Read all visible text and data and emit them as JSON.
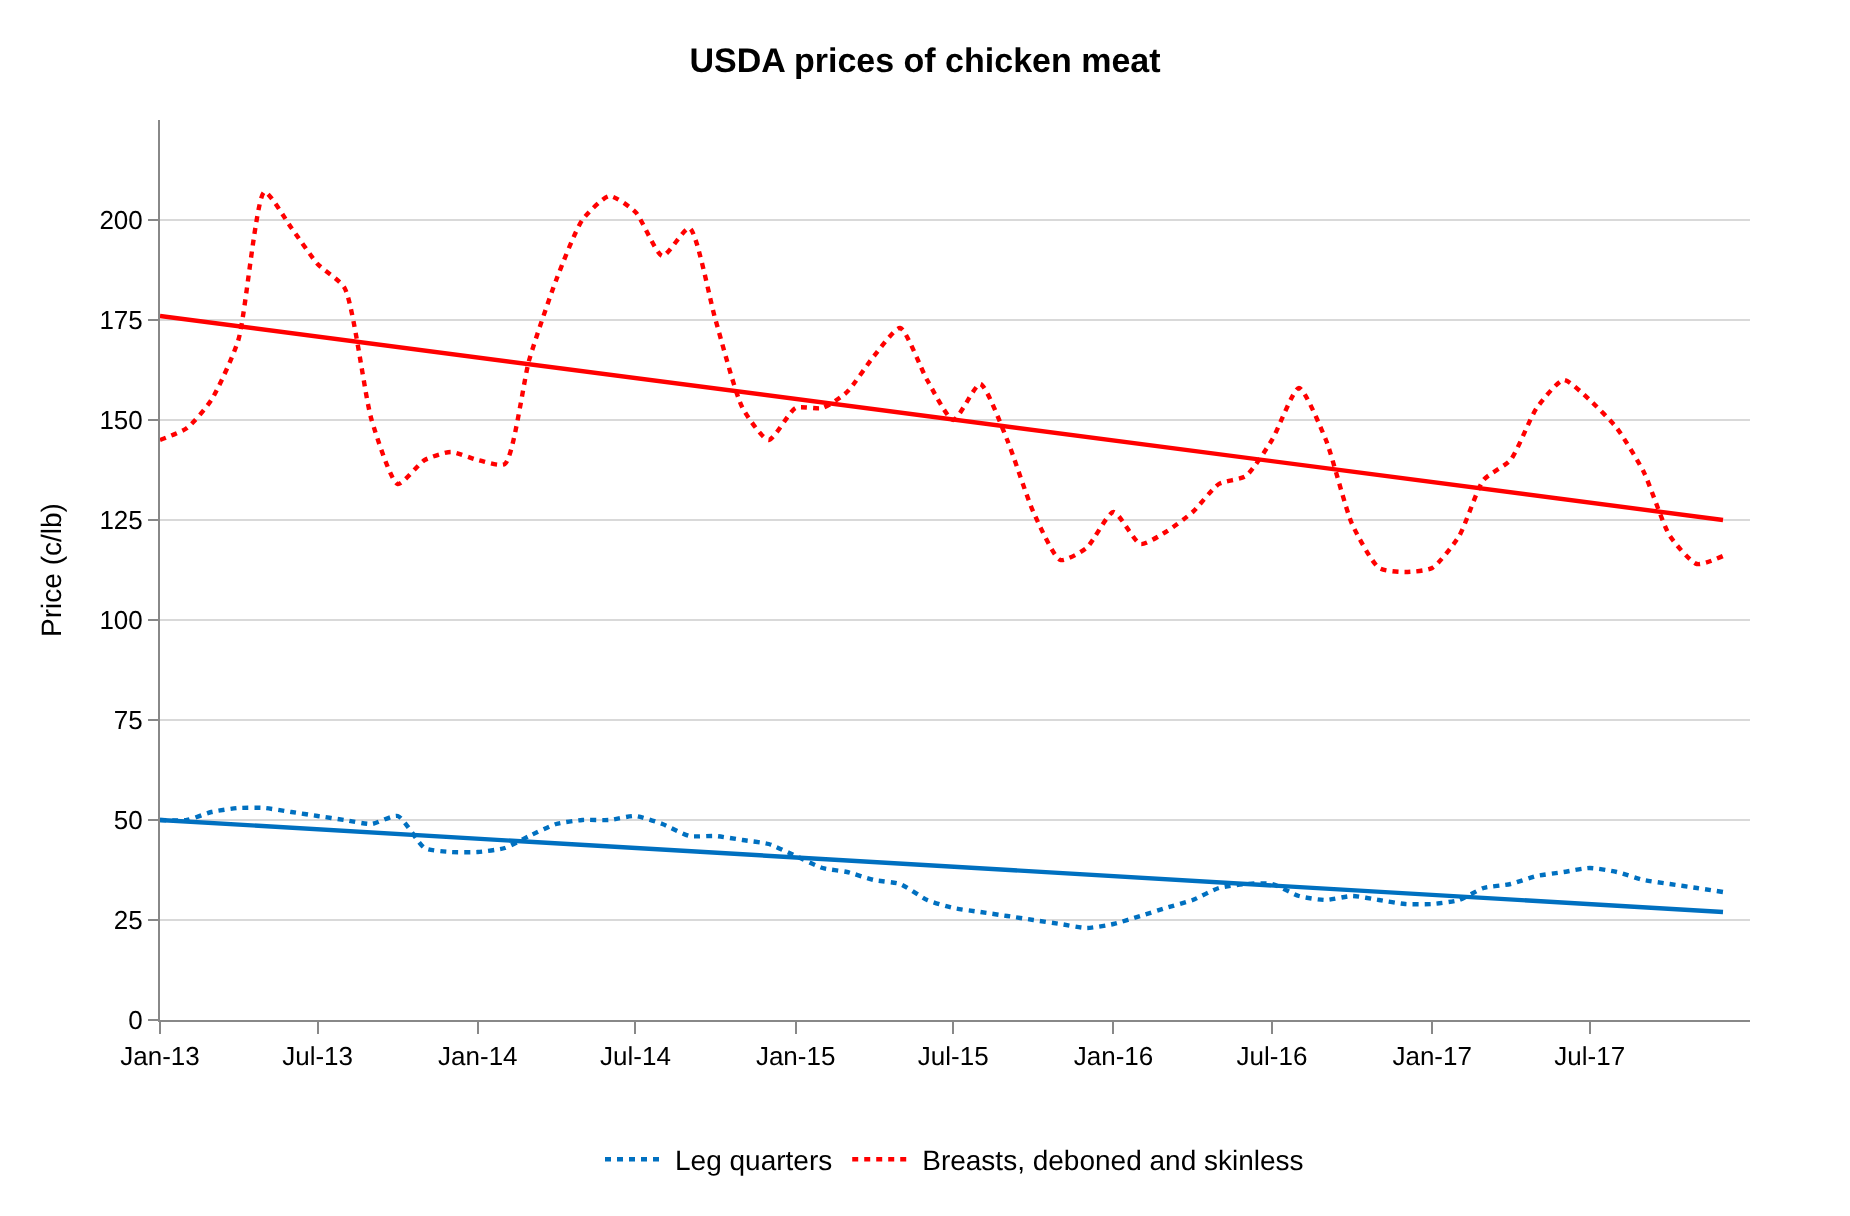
{
  "chart_data": {
    "type": "line",
    "title": "USDA prices of chicken meat",
    "ylabel": "Price (c/lb)",
    "x": [
      "2013-01",
      "2013-02",
      "2013-03",
      "2013-04",
      "2013-05",
      "2013-06",
      "2013-07",
      "2013-08",
      "2013-09",
      "2013-10",
      "2013-11",
      "2013-12",
      "2014-01",
      "2014-02",
      "2014-03",
      "2014-04",
      "2014-05",
      "2014-06",
      "2014-07",
      "2014-08",
      "2014-09",
      "2014-10",
      "2014-11",
      "2014-12",
      "2015-01",
      "2015-02",
      "2015-03",
      "2015-04",
      "2015-05",
      "2015-06",
      "2015-07",
      "2015-08",
      "2015-09",
      "2015-10",
      "2015-11",
      "2015-12",
      "2016-01",
      "2016-02",
      "2016-03",
      "2016-04",
      "2016-05",
      "2016-06",
      "2016-07",
      "2016-08",
      "2016-09",
      "2016-10",
      "2016-11",
      "2016-12",
      "2017-01",
      "2017-02",
      "2017-03",
      "2017-04",
      "2017-05",
      "2017-06",
      "2017-07",
      "2017-08",
      "2017-09",
      "2017-10",
      "2017-11",
      "2017-12"
    ],
    "series": [
      {
        "name": "Leg quarters",
        "color": "#0070c0",
        "line_style": "dotted",
        "values": [
          50,
          50,
          52,
          53,
          53,
          52,
          51,
          50,
          49,
          51,
          43,
          42,
          42,
          43,
          46,
          49,
          50,
          50,
          51,
          49,
          46,
          46,
          45,
          44,
          41,
          38,
          37,
          35,
          34,
          30,
          28,
          27,
          26,
          25,
          24,
          23,
          24,
          26,
          28,
          30,
          33,
          34,
          34,
          31,
          30,
          31,
          30,
          29,
          29,
          30,
          33,
          34,
          36,
          37,
          38,
          37,
          35,
          34,
          33,
          32
        ]
      },
      {
        "name": "Breasts, deboned and skinless",
        "color": "#ff0000",
        "line_style": "dotted",
        "values": [
          145,
          148,
          155,
          170,
          207,
          198,
          189,
          183,
          150,
          134,
          140,
          142,
          140,
          139,
          165,
          185,
          200,
          206,
          202,
          191,
          198,
          175,
          153,
          145,
          153,
          153,
          157,
          166,
          173,
          160,
          150,
          159,
          145,
          127,
          115,
          118,
          127,
          119,
          122,
          127,
          134,
          136,
          145,
          158,
          145,
          124,
          113,
          112,
          113,
          121,
          135,
          140,
          153,
          160,
          155,
          148,
          137,
          121,
          114,
          116
        ]
      },
      {
        "type": "line",
        "color": "#0070c0",
        "line_style": "solid",
        "x": [
          "2013-01",
          "2017-12"
        ],
        "values": [
          50,
          27
        ]
      },
      {
        "type": "line",
        "color": "#ff0000",
        "line_style": "solid",
        "x": [
          "2013-01",
          "2017-12"
        ],
        "values": [
          176,
          125
        ]
      }
    ],
    "xlim": [
      "2013-01",
      "2018-01"
    ],
    "xticks": [
      {
        "value": "2013-01",
        "label": "Jan-13"
      },
      {
        "value": "2013-07",
        "label": "Jul-13"
      },
      {
        "value": "2014-01",
        "label": "Jan-14"
      },
      {
        "value": "2014-07",
        "label": "Jul-14"
      },
      {
        "value": "2015-01",
        "label": "Jan-15"
      },
      {
        "value": "2015-07",
        "label": "Jul-15"
      },
      {
        "value": "2016-01",
        "label": "Jan-16"
      },
      {
        "value": "2016-07",
        "label": "Jul-16"
      },
      {
        "value": "2017-01",
        "label": "Jan-17"
      },
      {
        "value": "2017-07",
        "label": "Jul-17"
      }
    ],
    "ylim": [
      0,
      225
    ],
    "yticks": [
      0,
      25,
      50,
      75,
      100,
      125,
      150,
      175,
      200
    ],
    "grid": "y",
    "legend": "bottom",
    "marker": "none"
  }
}
